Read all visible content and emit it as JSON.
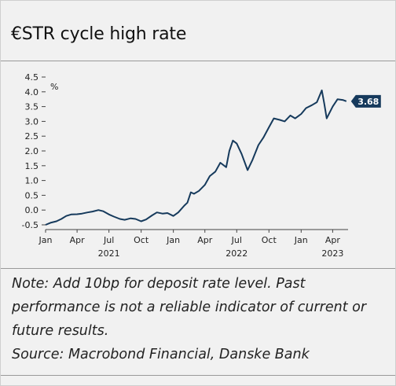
{
  "title": "€STR cycle high rate",
  "notes": {
    "note": "Note: Add 10bp for deposit rate level. Past performance is not a reliable indicator of current or future results.",
    "source": "Source: Macrobond Financial, Danske Bank"
  },
  "chart_data": {
    "type": "line",
    "unit_label": "%",
    "ylim": [
      -0.5,
      4.5
    ],
    "yticks": [
      "4.5",
      "4.0",
      "3.5",
      "3.0",
      "2.5",
      "2.0",
      "1.5",
      "1.0",
      "0.5",
      "0.0",
      "-0.5"
    ],
    "xlim": [
      "2021-01-01",
      "2023-05-15"
    ],
    "xticks": [
      {
        "label": "Jan",
        "date": "2021-01-01"
      },
      {
        "label": "Apr",
        "date": "2021-04-01"
      },
      {
        "label": "Jul",
        "date": "2021-07-01"
      },
      {
        "label": "Oct",
        "date": "2021-10-01"
      },
      {
        "label": "Jan",
        "date": "2022-01-01"
      },
      {
        "label": "Apr",
        "date": "2022-04-01"
      },
      {
        "label": "Jul",
        "date": "2022-07-01"
      },
      {
        "label": "Oct",
        "date": "2022-10-01"
      },
      {
        "label": "Jan",
        "date": "2023-01-01"
      },
      {
        "label": "Apr",
        "date": "2023-04-01"
      }
    ],
    "year_labels": [
      {
        "label": "2021",
        "date": "2021-07-01"
      },
      {
        "label": "2022",
        "date": "2022-07-01"
      },
      {
        "label": "2023",
        "date": "2023-04-01"
      }
    ],
    "last_value_label": "3.68",
    "accent_color": "#163a5c",
    "series": [
      {
        "x": [
          "2021-01-01",
          "2021-01-15",
          "2021-02-01",
          "2021-02-15",
          "2021-03-01",
          "2021-03-15",
          "2021-04-01",
          "2021-04-15",
          "2021-05-01",
          "2021-05-15",
          "2021-06-01",
          "2021-06-15",
          "2021-07-01",
          "2021-07-15",
          "2021-08-01",
          "2021-08-15",
          "2021-09-01",
          "2021-09-15",
          "2021-10-01",
          "2021-10-15",
          "2021-11-01",
          "2021-11-15",
          "2021-12-01",
          "2021-12-15",
          "2022-01-01",
          "2022-01-15",
          "2022-02-01",
          "2022-02-10",
          "2022-02-20",
          "2022-03-01",
          "2022-03-15",
          "2022-04-01",
          "2022-04-15",
          "2022-05-01",
          "2022-05-15",
          "2022-06-01",
          "2022-06-10",
          "2022-06-20",
          "2022-07-01",
          "2022-07-15",
          "2022-08-01",
          "2022-08-15",
          "2022-09-01",
          "2022-09-15",
          "2022-10-01",
          "2022-10-15",
          "2022-11-01",
          "2022-11-15",
          "2022-12-01",
          "2022-12-15",
          "2023-01-01",
          "2023-01-15",
          "2023-02-01",
          "2023-02-15",
          "2023-03-01",
          "2023-03-08",
          "2023-03-15",
          "2023-04-01",
          "2023-04-15",
          "2023-05-01",
          "2023-05-10"
        ],
        "values": [
          -0.5,
          -0.43,
          -0.38,
          -0.3,
          -0.2,
          -0.15,
          -0.14,
          -0.12,
          -0.08,
          -0.05,
          0.0,
          -0.04,
          -0.15,
          -0.22,
          -0.3,
          -0.33,
          -0.28,
          -0.3,
          -0.38,
          -0.32,
          -0.18,
          -0.08,
          -0.12,
          -0.1,
          -0.2,
          -0.08,
          0.15,
          0.25,
          0.6,
          0.55,
          0.65,
          0.85,
          1.15,
          1.3,
          1.6,
          1.45,
          2.0,
          2.35,
          2.25,
          1.9,
          1.35,
          1.7,
          2.2,
          2.45,
          2.8,
          3.1,
          3.05,
          3.0,
          3.2,
          3.1,
          3.25,
          3.45,
          3.55,
          3.65,
          4.05,
          3.6,
          3.1,
          3.5,
          3.75,
          3.72,
          3.68
        ]
      }
    ]
  }
}
